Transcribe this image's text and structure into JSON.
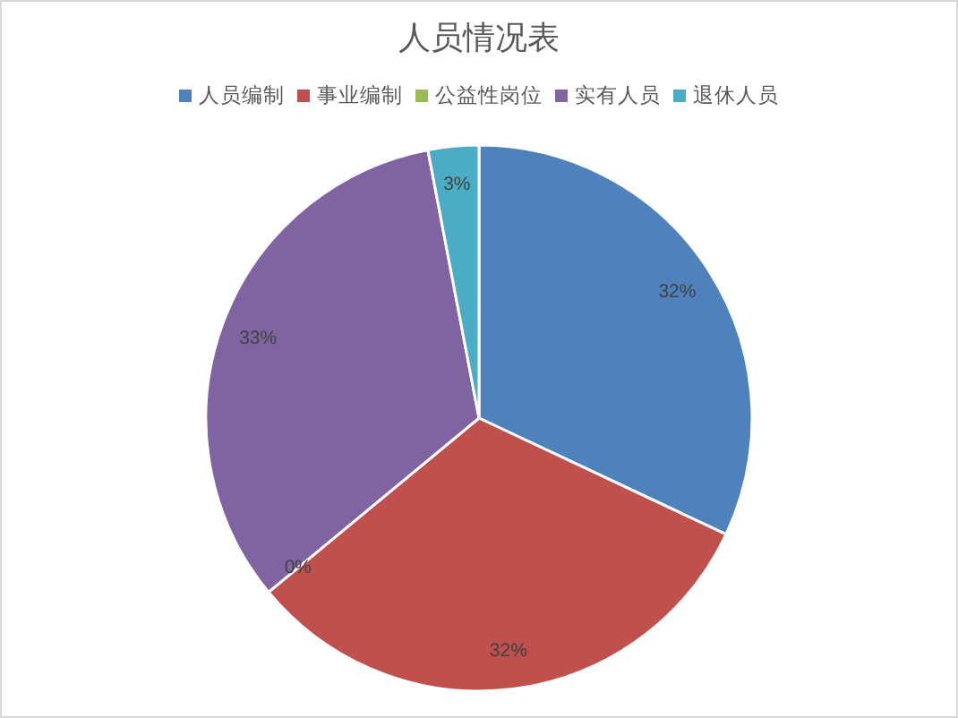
{
  "chart_data": {
    "type": "pie",
    "title": "人员情况表",
    "categories": [
      "人员编制",
      "事业编制",
      "公益性岗位",
      "实有人员",
      "退休人员"
    ],
    "values": [
      32,
      32,
      0,
      33,
      3
    ],
    "value_labels": [
      "32%",
      "32%",
      "0%",
      "33%",
      "3%"
    ],
    "colors": [
      "#4f81bd",
      "#c0504d",
      "#9bbb59",
      "#8064a2",
      "#4bacc6"
    ],
    "legend": "top"
  }
}
